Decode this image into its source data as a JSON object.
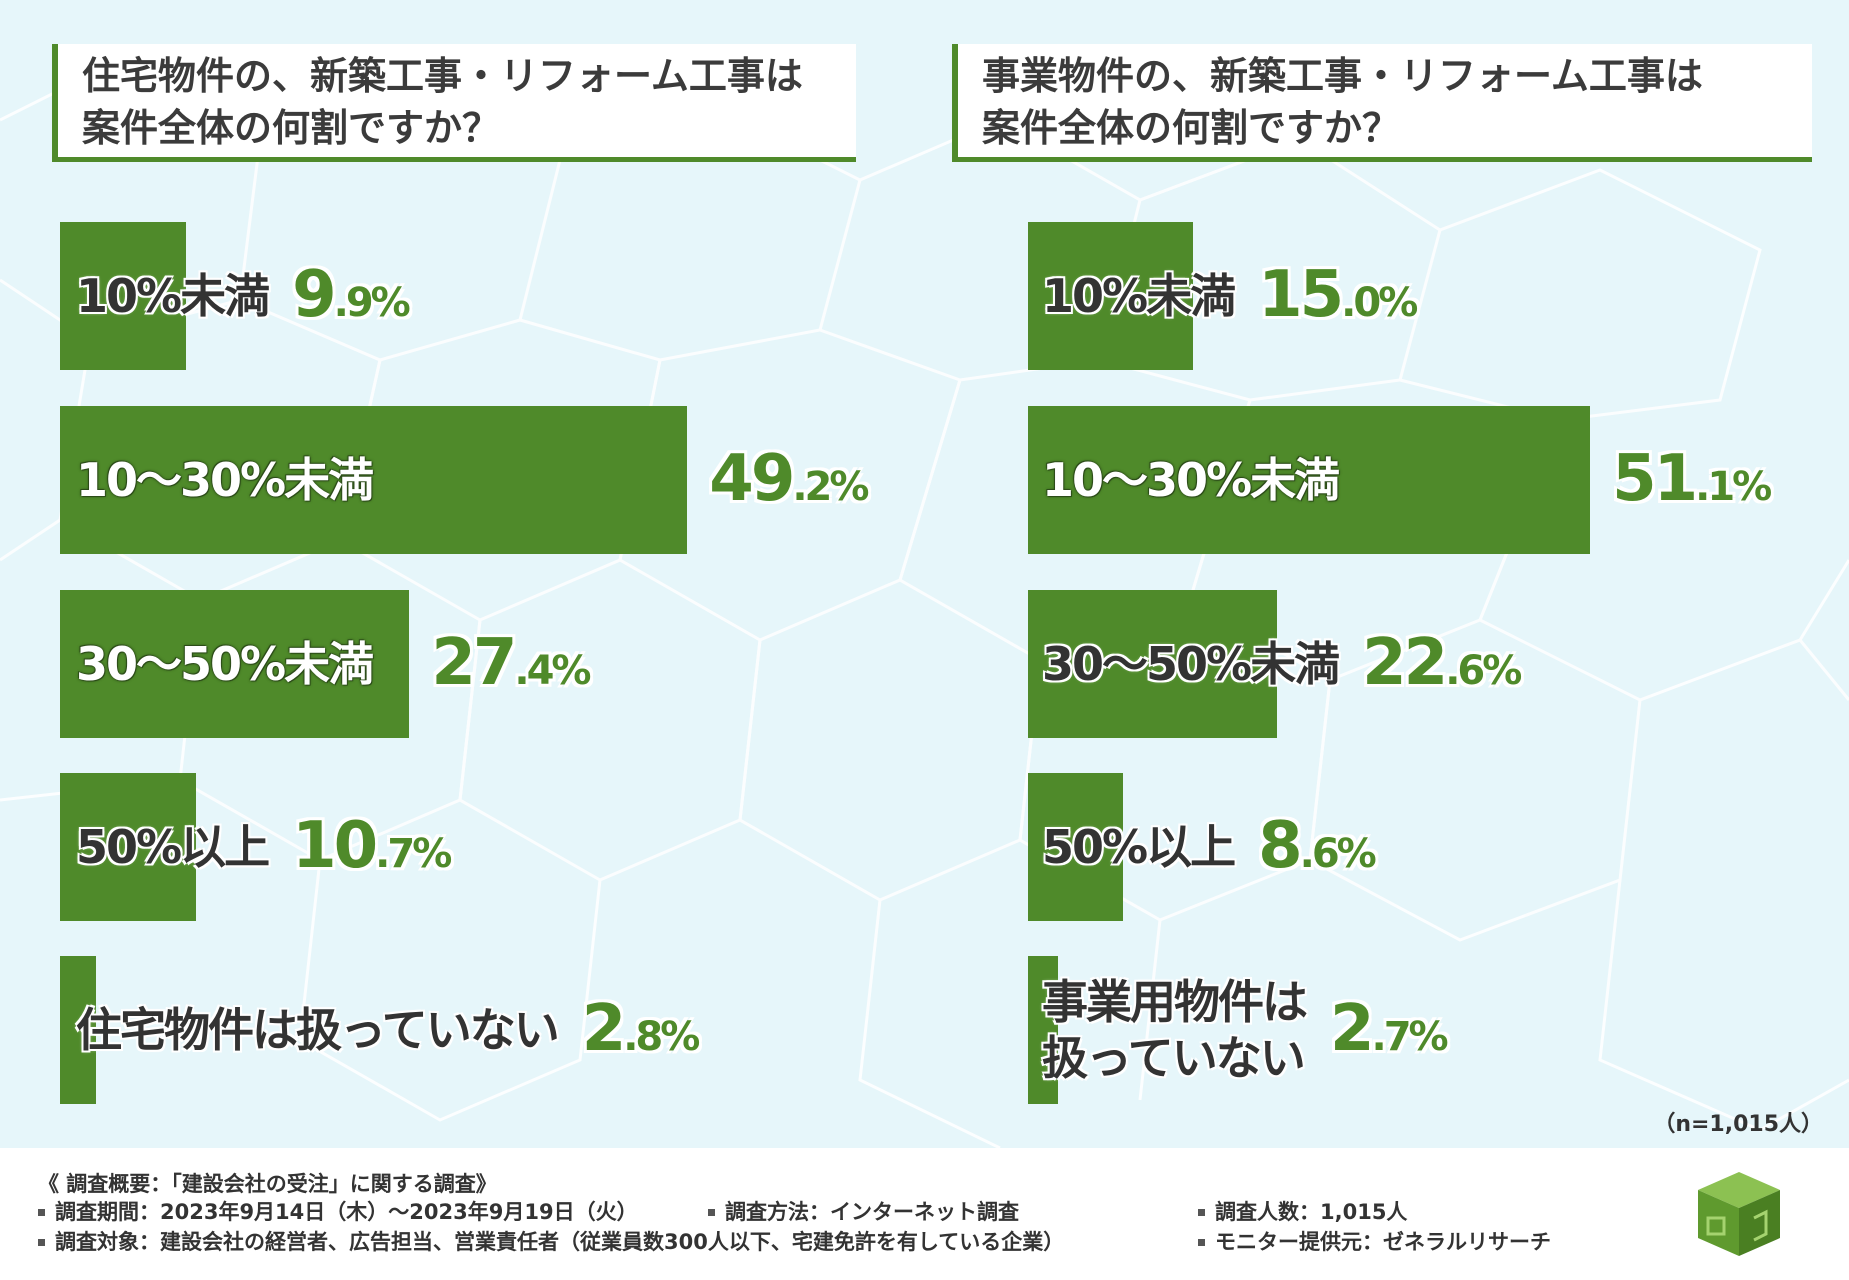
{
  "left_question": {
    "line1": "住宅物件の、新築工事・リフォーム工事は",
    "line2": "案件全体の何割ですか？"
  },
  "right_question": {
    "line1": "事業物件の、新築工事・リフォーム工事は",
    "line2": "案件全体の何割ですか？"
  },
  "chart_data": [
    {
      "type": "bar",
      "orientation": "horizontal",
      "title": "住宅物件の、新築工事・リフォーム工事は案件全体の何割ですか？",
      "categories": [
        "10%未満",
        "10〜30%未満",
        "30〜50%未満",
        "50%以上",
        "住宅物件は扱っていない"
      ],
      "values": [
        9.9,
        49.2,
        27.4,
        10.7,
        2.8
      ],
      "value_labels": [
        {
          "big": "9",
          "small": ".9%"
        },
        {
          "big": "49",
          "small": ".2%"
        },
        {
          "big": "27",
          "small": ".4%"
        },
        {
          "big": "10",
          "small": ".7%"
        },
        {
          "big": "2",
          "small": ".8%"
        }
      ],
      "unit": "%"
    },
    {
      "type": "bar",
      "orientation": "horizontal",
      "title": "事業物件の、新築工事・リフォーム工事は案件全体の何割ですか？",
      "categories": [
        "10%未満",
        "10〜30%未満",
        "30〜50%未満",
        "50%以上",
        "事業用物件は扱っていない"
      ],
      "category_lines": [
        [
          "10%未満"
        ],
        [
          "10〜30%未満"
        ],
        [
          "30〜50%未満"
        ],
        [
          "50%以上"
        ],
        [
          "事業用物件は",
          "扱っていない"
        ]
      ],
      "values": [
        15.0,
        51.1,
        22.6,
        8.6,
        2.7
      ],
      "value_labels": [
        {
          "big": "15",
          "small": ".0%"
        },
        {
          "big": "51",
          "small": ".1%"
        },
        {
          "big": "22",
          "small": ".6%"
        },
        {
          "big": "8",
          "small": ".6%"
        },
        {
          "big": "2",
          "small": ".7%"
        }
      ],
      "unit": "%"
    }
  ],
  "sample_size": "（n=1,015人）",
  "footer": {
    "summary": "《 調査概要：「建設会社の受注」に関する調査》",
    "period": "調査期間：2023年9月14日（木）〜2023年9月19日（火）",
    "method": "調査方法：インターネット調査",
    "count": "調査人数：1,015人",
    "target": "調査対象：建設会社の経営者、広告担当、営業責任者（従業員数300人以下、宅建免許を有している企業）",
    "provider": "モニター提供元：ゼネラルリサーチ"
  },
  "colors": {
    "bar": "#4f8a2a",
    "background": "#e6f6fa"
  }
}
